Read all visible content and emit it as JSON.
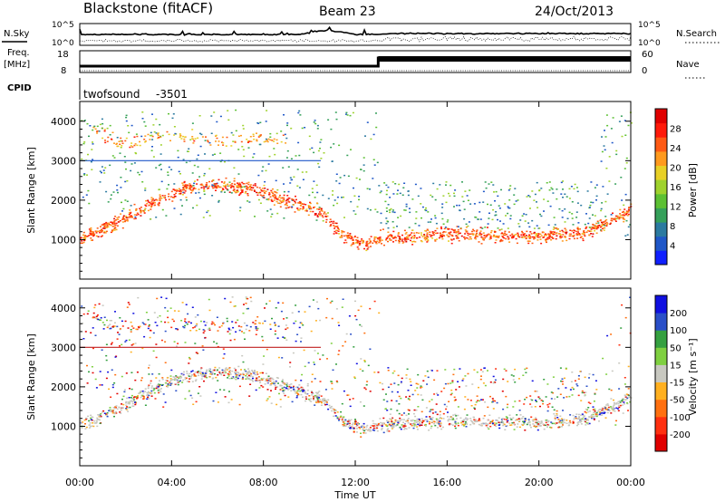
{
  "header": {
    "station": "Blackstone (fitACF)",
    "beam": "Beam 23",
    "date": "24/Oct/2013"
  },
  "noise_panel": {
    "left_label": "N.Sky",
    "right_label": "N.Search",
    "ticks_left": [
      "10^5",
      "10^0"
    ],
    "ticks_right": [
      "10^5",
      "10^0"
    ]
  },
  "freq_panel": {
    "left_label_1": "Freq.",
    "left_label_2": "[MHz]",
    "right_label": "Nave",
    "ticks_left": [
      "18",
      "8"
    ],
    "ticks_right": [
      "60",
      "0"
    ]
  },
  "cpid": {
    "label": "CPID",
    "program": "twofsound",
    "id": "-3501"
  },
  "chart_data": [
    {
      "type": "heatmap",
      "title": "",
      "ylabel": "Slant Range [km]",
      "xlabel": "",
      "ylim": [
        0,
        4500
      ],
      "yticks": [
        "1000",
        "2000",
        "3000",
        "4000"
      ],
      "colorbar": {
        "label": "Power [dB]",
        "ticks": [
          "4",
          "8",
          "12",
          "16",
          "20",
          "24",
          "28"
        ],
        "range": [
          0,
          30
        ],
        "colors": [
          "#1020ff",
          "#1f57c8",
          "#2b7aa0",
          "#35a05a",
          "#5cc033",
          "#9fd22d",
          "#e8d026",
          "#ff9a1e",
          "#ff5a14",
          "#ff1a0a",
          "#e00000"
        ]
      },
      "features": [
        {
          "name": "near band",
          "points": [
            [
              0.0,
              1050
            ],
            [
              1.5,
              1400
            ],
            [
              3.0,
              1900
            ],
            [
              4.5,
              2300
            ],
            [
              6.0,
              2400
            ],
            [
              7.5,
              2300
            ],
            [
              9.0,
              2000
            ],
            [
              10.5,
              1700
            ],
            [
              11.5,
              1100
            ],
            [
              12.5,
              900
            ],
            [
              13.0,
              1050
            ],
            [
              16.0,
              1150
            ],
            [
              20.0,
              1100
            ],
            [
              22.0,
              1200
            ],
            [
              23.5,
              1600
            ],
            [
              24.0,
              1800
            ]
          ]
        },
        {
          "name": "far band",
          "points": [
            [
              0.5,
              3800
            ],
            [
              2.0,
              3400
            ],
            [
              3.5,
              3700
            ],
            [
              5.0,
              3600
            ],
            [
              6.5,
              3500
            ],
            [
              8.0,
              3600
            ],
            [
              9.0,
              3500
            ]
          ]
        }
      ]
    },
    {
      "type": "heatmap",
      "title": "",
      "ylabel": "Slant Range [km]",
      "xlabel": "Time UT",
      "xticks": [
        "00:00",
        "04:00",
        "08:00",
        "12:00",
        "16:00",
        "20:00",
        "00:00"
      ],
      "xlim": [
        0,
        24
      ],
      "ylim": [
        0,
        4500
      ],
      "yticks": [
        "1000",
        "2000",
        "3000",
        "4000"
      ],
      "colorbar": {
        "label": "Velocity [m s⁻¹]",
        "ticks": [
          "200",
          "100",
          "50",
          "15",
          "-15",
          "-50",
          "-100",
          "-200"
        ],
        "colors": [
          "#1010e0",
          "#2a4fc8",
          "#35a040",
          "#7fd040",
          "#c8c8c0",
          "#ffb020",
          "#ff7010",
          "#ff3010",
          "#e00000"
        ]
      }
    }
  ]
}
